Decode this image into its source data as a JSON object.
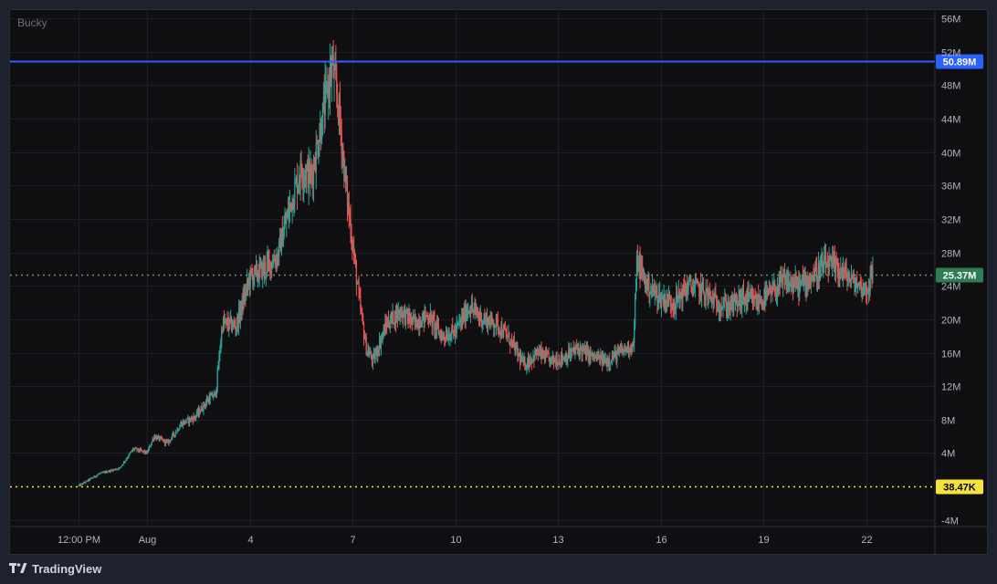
{
  "watermark": "Bucky",
  "footer": {
    "brand": "TradingView"
  },
  "chart_data": {
    "type": "candlestick",
    "y_unit": "M",
    "ylim": [
      -4.8,
      57
    ],
    "y_ticks": [
      {
        "v": 56,
        "label": "56M"
      },
      {
        "v": 52,
        "label": "52M"
      },
      {
        "v": 48,
        "label": "48M"
      },
      {
        "v": 44,
        "label": "44M"
      },
      {
        "v": 40,
        "label": "40M"
      },
      {
        "v": 36,
        "label": "36M"
      },
      {
        "v": 32,
        "label": "32M"
      },
      {
        "v": 28,
        "label": "28M"
      },
      {
        "v": 24,
        "label": "24M"
      },
      {
        "v": 20,
        "label": "20M"
      },
      {
        "v": 16,
        "label": "16M"
      },
      {
        "v": 12,
        "label": "12M"
      },
      {
        "v": 8,
        "label": "8M"
      },
      {
        "v": 4,
        "label": "4M"
      },
      {
        "v": -4,
        "label": "-4M"
      }
    ],
    "x_ticks": [
      {
        "t": 0,
        "label": "12:00 PM"
      },
      {
        "t": 1.0,
        "label": "Aug"
      },
      {
        "t": 2.5,
        "label": "4"
      },
      {
        "t": 4.0,
        "label": "7"
      },
      {
        "t": 5.5,
        "label": "10"
      },
      {
        "t": 7.0,
        "label": "13"
      },
      {
        "t": 8.5,
        "label": "16"
      },
      {
        "t": 10.0,
        "label": "19"
      },
      {
        "t": 11.5,
        "label": "22"
      }
    ],
    "xlim": [
      -1.0,
      12.5
    ],
    "lines": [
      {
        "value": 50.89,
        "label": "50.89M",
        "style": "solid",
        "color": "#2962ff",
        "label_bg": "#2962ff",
        "label_fg": "#ffffff"
      },
      {
        "value": 25.37,
        "label": "25.37M",
        "style": "dotted",
        "color": "#7a8a7e",
        "label_bg": "#2e7d52",
        "label_fg": "#ffffff"
      },
      {
        "value": 0.03847,
        "label": "38.47K",
        "style": "dotted",
        "color": "#f5e33b",
        "label_bg": "#f5e33b",
        "label_fg": "#000000"
      }
    ],
    "colors": {
      "up": "#26a69a",
      "down": "#ef5350",
      "grid": "#1c1f26",
      "text": "#b2b5be"
    },
    "price_path": [
      [
        0.0,
        0.04
      ],
      [
        0.3,
        1.5
      ],
      [
        0.6,
        2.2
      ],
      [
        0.8,
        4.5
      ],
      [
        1.0,
        4.0
      ],
      [
        1.1,
        6.0
      ],
      [
        1.3,
        5.2
      ],
      [
        1.5,
        7.5
      ],
      [
        1.7,
        8.3
      ],
      [
        1.9,
        10.5
      ],
      [
        2.0,
        11.0
      ],
      [
        2.1,
        19.5
      ],
      [
        2.3,
        19.2
      ],
      [
        2.5,
        25.0
      ],
      [
        2.7,
        26.0
      ],
      [
        2.9,
        27.5
      ],
      [
        3.1,
        34.0
      ],
      [
        3.25,
        38.0
      ],
      [
        3.4,
        37.0
      ],
      [
        3.6,
        46.0
      ],
      [
        3.7,
        50.5
      ],
      [
        3.8,
        45.0
      ],
      [
        3.9,
        36.0
      ],
      [
        4.0,
        29.0
      ],
      [
        4.1,
        22.0
      ],
      [
        4.2,
        16.5
      ],
      [
        4.3,
        15.0
      ],
      [
        4.5,
        19.5
      ],
      [
        4.7,
        21.0
      ],
      [
        4.9,
        19.5
      ],
      [
        5.1,
        20.5
      ],
      [
        5.3,
        18.0
      ],
      [
        5.5,
        18.5
      ],
      [
        5.7,
        21.5
      ],
      [
        5.9,
        20.0
      ],
      [
        6.1,
        19.5
      ],
      [
        6.3,
        17.5
      ],
      [
        6.5,
        14.5
      ],
      [
        6.7,
        16.0
      ],
      [
        6.9,
        15.0
      ],
      [
        7.1,
        15.5
      ],
      [
        7.3,
        16.5
      ],
      [
        7.5,
        15.5
      ],
      [
        7.7,
        15.0
      ],
      [
        7.9,
        16.0
      ],
      [
        8.1,
        17.0
      ],
      [
        8.15,
        27.0
      ],
      [
        8.3,
        24.0
      ],
      [
        8.5,
        22.5
      ],
      [
        8.7,
        22.0
      ],
      [
        8.9,
        24.0
      ],
      [
        9.1,
        23.5
      ],
      [
        9.3,
        22.0
      ],
      [
        9.5,
        21.5
      ],
      [
        9.7,
        22.5
      ],
      [
        9.9,
        22.0
      ],
      [
        10.1,
        23.0
      ],
      [
        10.3,
        24.5
      ],
      [
        10.5,
        24.0
      ],
      [
        10.7,
        25.0
      ],
      [
        10.9,
        26.5
      ],
      [
        11.1,
        26.0
      ],
      [
        11.3,
        24.5
      ],
      [
        11.5,
        23.5
      ],
      [
        11.6,
        25.4
      ]
    ]
  }
}
